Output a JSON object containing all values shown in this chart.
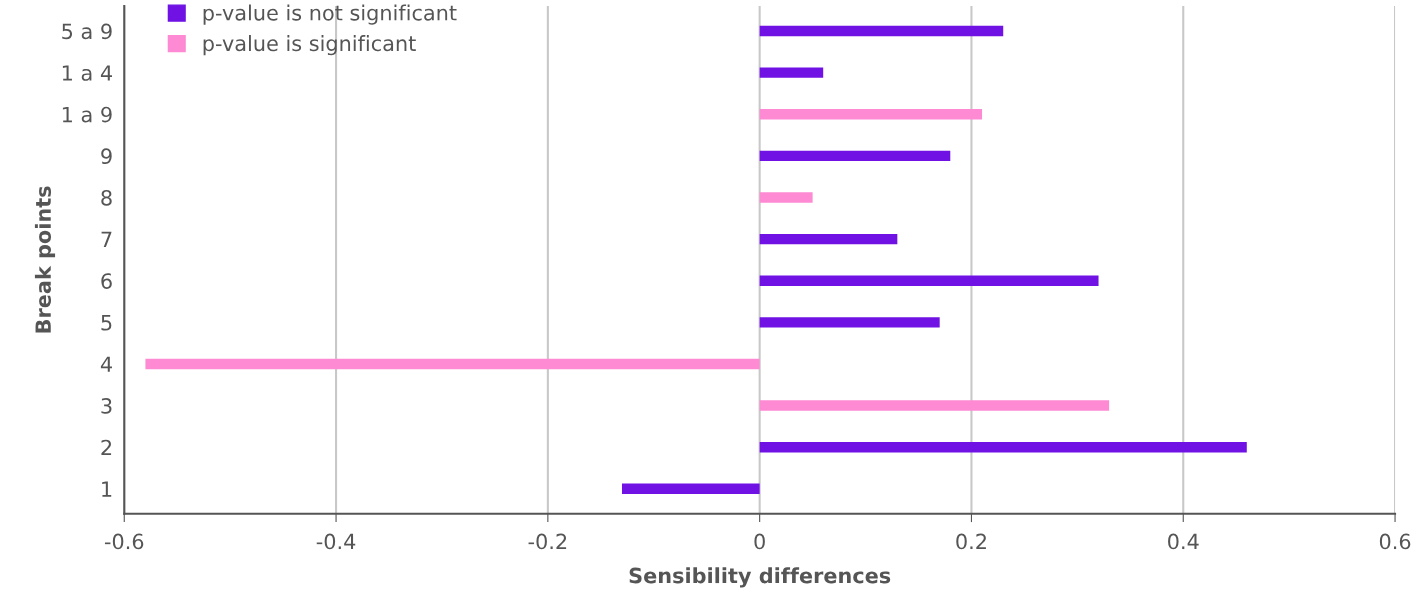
{
  "chart_data": {
    "type": "bar",
    "orientation": "horizontal",
    "xlabel": "Sensibility differences",
    "ylabel": "Break points",
    "categories": [
      "5 a 9",
      "1 a 4",
      "1 a 9",
      "9",
      "8",
      "7",
      "6",
      "5",
      "4",
      "3",
      "2",
      "1"
    ],
    "series": [
      {
        "name": "p-value is not significant",
        "color": "#6f12e3",
        "values": [
          0.23,
          0.06,
          null,
          0.18,
          null,
          0.13,
          0.32,
          0.17,
          null,
          null,
          0.46,
          -0.13
        ]
      },
      {
        "name": "p-value is significant",
        "color": "#fd8ad3",
        "values": [
          null,
          null,
          0.21,
          null,
          0.05,
          null,
          null,
          null,
          -0.58,
          0.33,
          null,
          null
        ]
      }
    ],
    "xlim": [
      -0.6,
      0.6
    ],
    "xticks": [
      -0.6,
      -0.4,
      -0.2,
      0,
      0.2,
      0.4,
      0.6
    ],
    "grid": "x",
    "legend": "top left"
  }
}
